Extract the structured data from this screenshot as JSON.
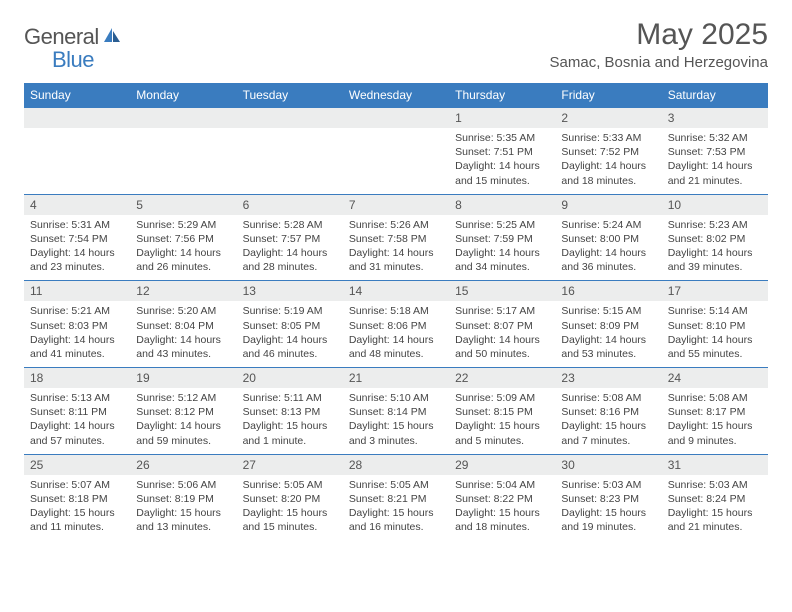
{
  "logo": {
    "word1": "General",
    "word2": "Blue"
  },
  "title": "May 2025",
  "location": "Samac, Bosnia and Herzegovina",
  "colors": {
    "header_bg": "#3a7cbf",
    "header_text": "#ffffff",
    "daynum_bg": "#eceded",
    "text": "#555555",
    "body_text": "#444444",
    "row_border": "#3a7cbf"
  },
  "day_headers": [
    "Sunday",
    "Monday",
    "Tuesday",
    "Wednesday",
    "Thursday",
    "Friday",
    "Saturday"
  ],
  "weeks": [
    [
      {
        "num": "",
        "sunrise": "",
        "sunset": "",
        "daylight1": "",
        "daylight2": ""
      },
      {
        "num": "",
        "sunrise": "",
        "sunset": "",
        "daylight1": "",
        "daylight2": ""
      },
      {
        "num": "",
        "sunrise": "",
        "sunset": "",
        "daylight1": "",
        "daylight2": ""
      },
      {
        "num": "",
        "sunrise": "",
        "sunset": "",
        "daylight1": "",
        "daylight2": ""
      },
      {
        "num": "1",
        "sunrise": "Sunrise: 5:35 AM",
        "sunset": "Sunset: 7:51 PM",
        "daylight1": "Daylight: 14 hours",
        "daylight2": "and 15 minutes."
      },
      {
        "num": "2",
        "sunrise": "Sunrise: 5:33 AM",
        "sunset": "Sunset: 7:52 PM",
        "daylight1": "Daylight: 14 hours",
        "daylight2": "and 18 minutes."
      },
      {
        "num": "3",
        "sunrise": "Sunrise: 5:32 AM",
        "sunset": "Sunset: 7:53 PM",
        "daylight1": "Daylight: 14 hours",
        "daylight2": "and 21 minutes."
      }
    ],
    [
      {
        "num": "4",
        "sunrise": "Sunrise: 5:31 AM",
        "sunset": "Sunset: 7:54 PM",
        "daylight1": "Daylight: 14 hours",
        "daylight2": "and 23 minutes."
      },
      {
        "num": "5",
        "sunrise": "Sunrise: 5:29 AM",
        "sunset": "Sunset: 7:56 PM",
        "daylight1": "Daylight: 14 hours",
        "daylight2": "and 26 minutes."
      },
      {
        "num": "6",
        "sunrise": "Sunrise: 5:28 AM",
        "sunset": "Sunset: 7:57 PM",
        "daylight1": "Daylight: 14 hours",
        "daylight2": "and 28 minutes."
      },
      {
        "num": "7",
        "sunrise": "Sunrise: 5:26 AM",
        "sunset": "Sunset: 7:58 PM",
        "daylight1": "Daylight: 14 hours",
        "daylight2": "and 31 minutes."
      },
      {
        "num": "8",
        "sunrise": "Sunrise: 5:25 AM",
        "sunset": "Sunset: 7:59 PM",
        "daylight1": "Daylight: 14 hours",
        "daylight2": "and 34 minutes."
      },
      {
        "num": "9",
        "sunrise": "Sunrise: 5:24 AM",
        "sunset": "Sunset: 8:00 PM",
        "daylight1": "Daylight: 14 hours",
        "daylight2": "and 36 minutes."
      },
      {
        "num": "10",
        "sunrise": "Sunrise: 5:23 AM",
        "sunset": "Sunset: 8:02 PM",
        "daylight1": "Daylight: 14 hours",
        "daylight2": "and 39 minutes."
      }
    ],
    [
      {
        "num": "11",
        "sunrise": "Sunrise: 5:21 AM",
        "sunset": "Sunset: 8:03 PM",
        "daylight1": "Daylight: 14 hours",
        "daylight2": "and 41 minutes."
      },
      {
        "num": "12",
        "sunrise": "Sunrise: 5:20 AM",
        "sunset": "Sunset: 8:04 PM",
        "daylight1": "Daylight: 14 hours",
        "daylight2": "and 43 minutes."
      },
      {
        "num": "13",
        "sunrise": "Sunrise: 5:19 AM",
        "sunset": "Sunset: 8:05 PM",
        "daylight1": "Daylight: 14 hours",
        "daylight2": "and 46 minutes."
      },
      {
        "num": "14",
        "sunrise": "Sunrise: 5:18 AM",
        "sunset": "Sunset: 8:06 PM",
        "daylight1": "Daylight: 14 hours",
        "daylight2": "and 48 minutes."
      },
      {
        "num": "15",
        "sunrise": "Sunrise: 5:17 AM",
        "sunset": "Sunset: 8:07 PM",
        "daylight1": "Daylight: 14 hours",
        "daylight2": "and 50 minutes."
      },
      {
        "num": "16",
        "sunrise": "Sunrise: 5:15 AM",
        "sunset": "Sunset: 8:09 PM",
        "daylight1": "Daylight: 14 hours",
        "daylight2": "and 53 minutes."
      },
      {
        "num": "17",
        "sunrise": "Sunrise: 5:14 AM",
        "sunset": "Sunset: 8:10 PM",
        "daylight1": "Daylight: 14 hours",
        "daylight2": "and 55 minutes."
      }
    ],
    [
      {
        "num": "18",
        "sunrise": "Sunrise: 5:13 AM",
        "sunset": "Sunset: 8:11 PM",
        "daylight1": "Daylight: 14 hours",
        "daylight2": "and 57 minutes."
      },
      {
        "num": "19",
        "sunrise": "Sunrise: 5:12 AM",
        "sunset": "Sunset: 8:12 PM",
        "daylight1": "Daylight: 14 hours",
        "daylight2": "and 59 minutes."
      },
      {
        "num": "20",
        "sunrise": "Sunrise: 5:11 AM",
        "sunset": "Sunset: 8:13 PM",
        "daylight1": "Daylight: 15 hours",
        "daylight2": "and 1 minute."
      },
      {
        "num": "21",
        "sunrise": "Sunrise: 5:10 AM",
        "sunset": "Sunset: 8:14 PM",
        "daylight1": "Daylight: 15 hours",
        "daylight2": "and 3 minutes."
      },
      {
        "num": "22",
        "sunrise": "Sunrise: 5:09 AM",
        "sunset": "Sunset: 8:15 PM",
        "daylight1": "Daylight: 15 hours",
        "daylight2": "and 5 minutes."
      },
      {
        "num": "23",
        "sunrise": "Sunrise: 5:08 AM",
        "sunset": "Sunset: 8:16 PM",
        "daylight1": "Daylight: 15 hours",
        "daylight2": "and 7 minutes."
      },
      {
        "num": "24",
        "sunrise": "Sunrise: 5:08 AM",
        "sunset": "Sunset: 8:17 PM",
        "daylight1": "Daylight: 15 hours",
        "daylight2": "and 9 minutes."
      }
    ],
    [
      {
        "num": "25",
        "sunrise": "Sunrise: 5:07 AM",
        "sunset": "Sunset: 8:18 PM",
        "daylight1": "Daylight: 15 hours",
        "daylight2": "and 11 minutes."
      },
      {
        "num": "26",
        "sunrise": "Sunrise: 5:06 AM",
        "sunset": "Sunset: 8:19 PM",
        "daylight1": "Daylight: 15 hours",
        "daylight2": "and 13 minutes."
      },
      {
        "num": "27",
        "sunrise": "Sunrise: 5:05 AM",
        "sunset": "Sunset: 8:20 PM",
        "daylight1": "Daylight: 15 hours",
        "daylight2": "and 15 minutes."
      },
      {
        "num": "28",
        "sunrise": "Sunrise: 5:05 AM",
        "sunset": "Sunset: 8:21 PM",
        "daylight1": "Daylight: 15 hours",
        "daylight2": "and 16 minutes."
      },
      {
        "num": "29",
        "sunrise": "Sunrise: 5:04 AM",
        "sunset": "Sunset: 8:22 PM",
        "daylight1": "Daylight: 15 hours",
        "daylight2": "and 18 minutes."
      },
      {
        "num": "30",
        "sunrise": "Sunrise: 5:03 AM",
        "sunset": "Sunset: 8:23 PM",
        "daylight1": "Daylight: 15 hours",
        "daylight2": "and 19 minutes."
      },
      {
        "num": "31",
        "sunrise": "Sunrise: 5:03 AM",
        "sunset": "Sunset: 8:24 PM",
        "daylight1": "Daylight: 15 hours",
        "daylight2": "and 21 minutes."
      }
    ]
  ]
}
